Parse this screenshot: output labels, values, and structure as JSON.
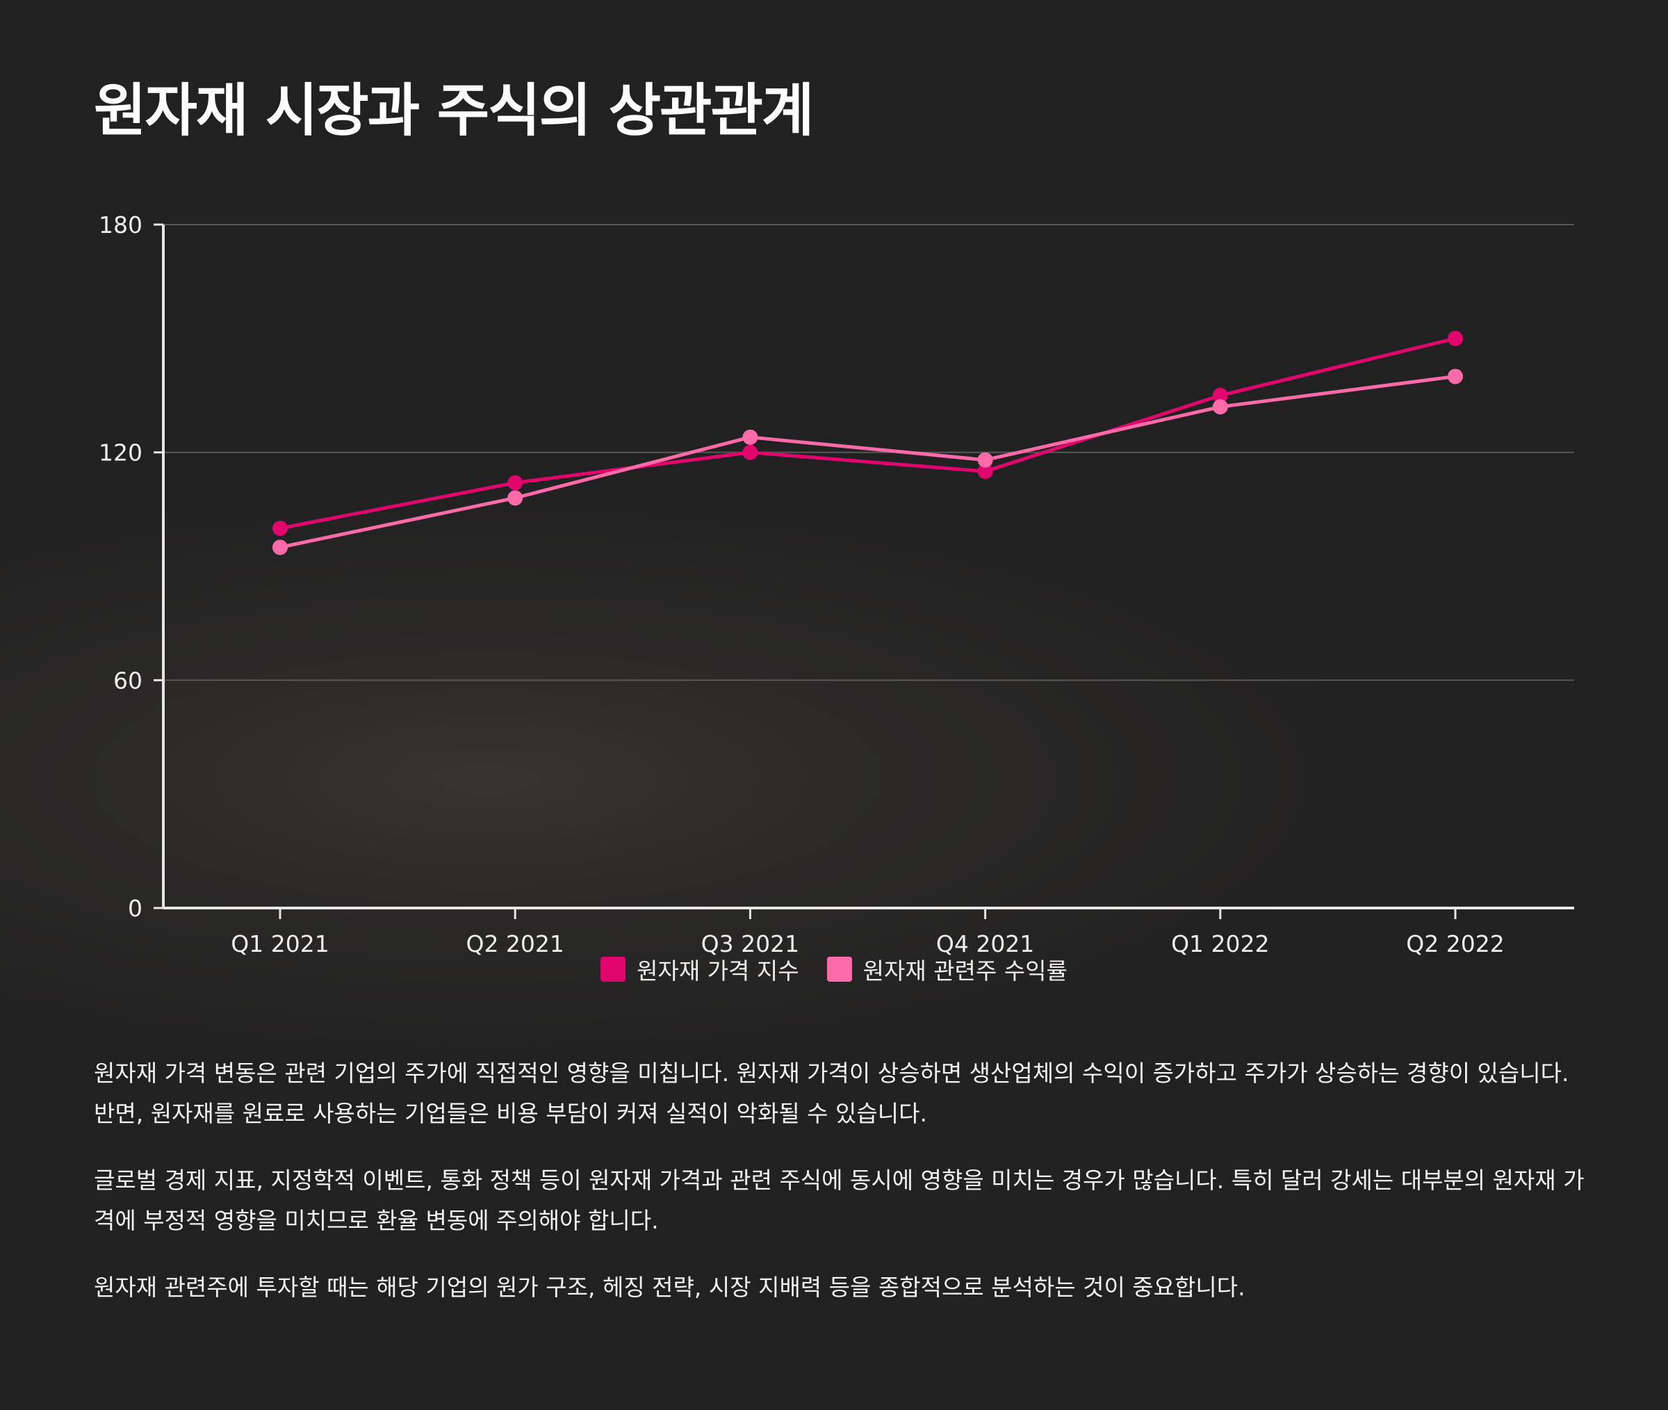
{
  "title": "원자재 시장과 주식의 상관관계",
  "chart_data": {
    "type": "line",
    "title": "",
    "xlabel": "",
    "ylabel": "",
    "categories": [
      "Q1 2021",
      "Q2 2021",
      "Q3 2021",
      "Q4 2021",
      "Q1 2022",
      "Q2 2022"
    ],
    "series": [
      {
        "name": "원자재 가격 지수",
        "color": "#e0066e",
        "values": [
          100,
          112,
          120,
          115,
          135,
          150
        ]
      },
      {
        "name": "원자재 관련주 수익률",
        "color": "#ff6aa8",
        "values": [
          95,
          108,
          124,
          118,
          132,
          140
        ]
      }
    ],
    "ylim": [
      0,
      180
    ],
    "yticks": [
      0,
      60,
      120,
      180
    ],
    "grid": true,
    "legend_position": "bottom"
  },
  "colors": {
    "background": "#222121",
    "axis": "#e6e6e6",
    "grid": "#5a5856"
  },
  "paragraphs": [
    "원자재 가격 변동은 관련 기업의 주가에 직접적인 영향을 미칩니다. 원자재 가격이 상승하면 생산업체의 수익이 증가하고 주가가 상승하는 경향이 있습니다. 반면, 원자재를 원료로 사용하는 기업들은 비용 부담이 커져 실적이 악화될 수 있습니다.",
    "글로벌 경제 지표, 지정학적 이벤트, 통화 정책 등이 원자재 가격과 관련 주식에 동시에 영향을 미치는 경우가 많습니다. 특히 달러 강세는 대부분의 원자재 가격에 부정적 영향을 미치므로 환율 변동에 주의해야 합니다.",
    "원자재 관련주에 투자할 때는 해당 기업의 원가 구조, 헤징 전략, 시장 지배력 등을 종합적으로 분석하는 것이 중요합니다."
  ]
}
